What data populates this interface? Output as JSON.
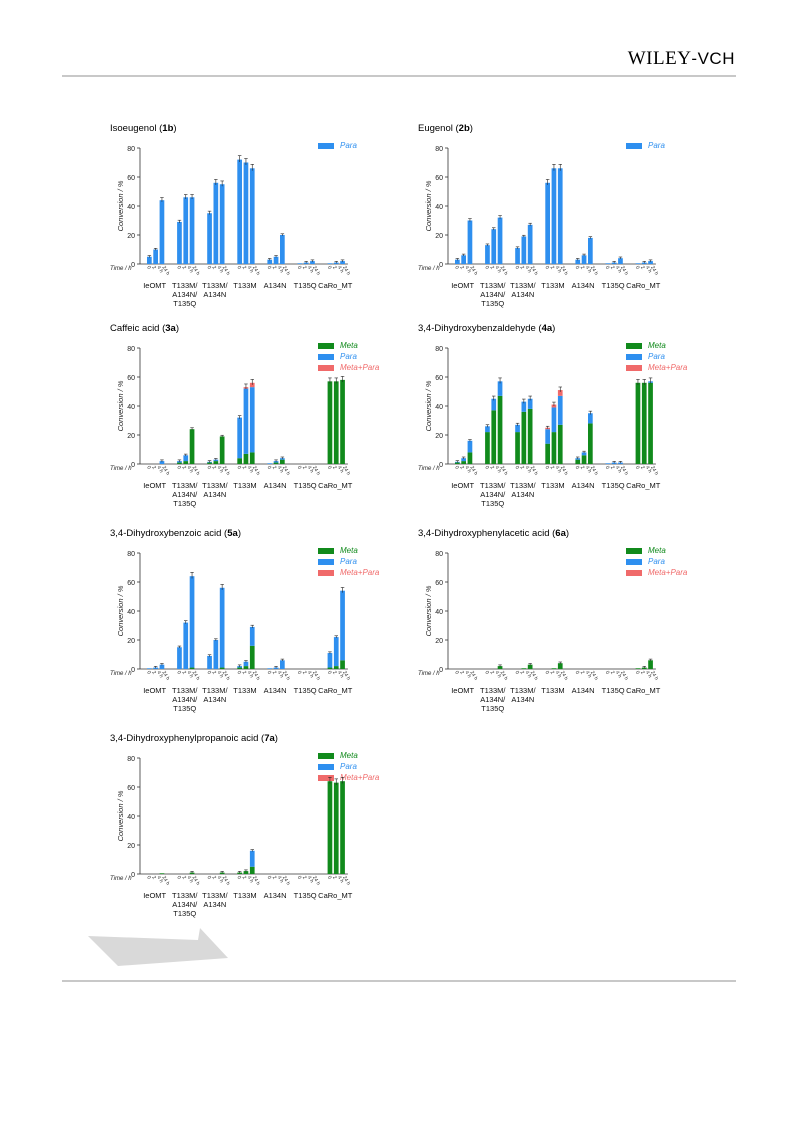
{
  "header": {
    "brand_main": "WILEY",
    "brand_sep": "-",
    "brand_sub": "VCH"
  },
  "colors": {
    "meta": "#118a1c",
    "para": "#2e8fef",
    "metapara": "#f06a6a",
    "axis": "#333333",
    "rule": "#c8c8c8"
  },
  "legend_labels": {
    "meta": "Meta",
    "para": "Para",
    "metapara": "Meta+Para"
  },
  "common": {
    "ylabel": "Conversion / %",
    "time_label": "Time / h",
    "time_ticks": [
      "0",
      "2",
      "4 h",
      "24 h"
    ],
    "yticks": [
      "0",
      "20",
      "40",
      "60",
      "80"
    ],
    "ylim": [
      0,
      80
    ]
  },
  "groups": [
    [
      "IeOMT"
    ],
    [
      "T133M/",
      "A134N/",
      "T135Q"
    ],
    [
      "T133M/",
      "A134N"
    ],
    [
      "T133M"
    ],
    [
      "A134N"
    ],
    [
      "T135Q"
    ],
    [
      "CaRo_MT"
    ]
  ],
  "chart_data": [
    {
      "type": "bar",
      "stacked": true,
      "title": "Isoeugenol",
      "compound": "1b",
      "series_keys": [
        "para"
      ],
      "values": {
        "meta": [],
        "para": [
          [
            5,
            10,
            44
          ],
          [
            29,
            46,
            46
          ],
          [
            35,
            56,
            55
          ],
          [
            72,
            70,
            66
          ],
          [
            3,
            5,
            20
          ],
          [
            0.5,
            1,
            2
          ],
          [
            0.5,
            1,
            2
          ]
        ],
        "metapara": []
      }
    },
    {
      "type": "bar",
      "stacked": true,
      "title": "Eugenol",
      "compound": "2b",
      "series_keys": [
        "para"
      ],
      "values": {
        "meta": [],
        "para": [
          [
            3,
            6,
            30
          ],
          [
            13,
            24,
            32
          ],
          [
            11,
            19,
            27
          ],
          [
            56,
            66,
            66
          ],
          [
            3,
            6,
            18
          ],
          [
            0.5,
            1,
            4
          ],
          [
            0.5,
            1,
            2
          ]
        ],
        "metapara": []
      }
    },
    {
      "type": "bar",
      "stacked": true,
      "title": "Caffeic acid",
      "compound": "3a",
      "series_keys": [
        "meta",
        "para",
        "metapara"
      ],
      "values": {
        "meta": [
          [
            0,
            0,
            0
          ],
          [
            1,
            2,
            24
          ],
          [
            1,
            2,
            19
          ],
          [
            4,
            7,
            8
          ],
          [
            0,
            1,
            3
          ],
          [
            0,
            0,
            0
          ],
          [
            57,
            57,
            58
          ]
        ],
        "para": [
          [
            0,
            0,
            2
          ],
          [
            1,
            4,
            0
          ],
          [
            0.5,
            1,
            0
          ],
          [
            28,
            45,
            45
          ],
          [
            0.5,
            1,
            1
          ],
          [
            0,
            0,
            0
          ],
          [
            0,
            0,
            0
          ]
        ],
        "metapara": [
          [
            0,
            0,
            0
          ],
          [
            0,
            0,
            0
          ],
          [
            0,
            0,
            0
          ],
          [
            0,
            1,
            3
          ],
          [
            0,
            0,
            0
          ],
          [
            0,
            0,
            0
          ],
          [
            0,
            0,
            0
          ]
        ]
      }
    },
    {
      "type": "bar",
      "stacked": true,
      "title": "3,4-Dihydroxybenzaldehyde",
      "compound": "4a",
      "series_keys": [
        "meta",
        "para",
        "metapara"
      ],
      "values": {
        "meta": [
          [
            1,
            2,
            8
          ],
          [
            22,
            37,
            47
          ],
          [
            22,
            36,
            38
          ],
          [
            14,
            22,
            27
          ],
          [
            3,
            6,
            28
          ],
          [
            0,
            0,
            0
          ],
          [
            56,
            56,
            56
          ]
        ],
        "para": [
          [
            0.5,
            2,
            8
          ],
          [
            4,
            8,
            10
          ],
          [
            5,
            7,
            7
          ],
          [
            10,
            17,
            20
          ],
          [
            1,
            2,
            7
          ],
          [
            0.5,
            1,
            1
          ],
          [
            0,
            0,
            1
          ]
        ],
        "metapara": [
          [
            0,
            0,
            0
          ],
          [
            0,
            0,
            0
          ],
          [
            0,
            0,
            0
          ],
          [
            1,
            2,
            4
          ],
          [
            0,
            0,
            0
          ],
          [
            0,
            0,
            0
          ],
          [
            0,
            0,
            0
          ]
        ]
      }
    },
    {
      "type": "bar",
      "stacked": true,
      "title": "3,4-Dihydroxybenzoic acid",
      "compound": "5a",
      "series_keys": [
        "meta",
        "para",
        "metapara"
      ],
      "values": {
        "meta": [
          [
            0,
            0,
            0
          ],
          [
            0,
            0,
            1
          ],
          [
            0,
            0,
            1
          ],
          [
            1,
            2,
            16
          ],
          [
            0,
            0,
            0
          ],
          [
            0,
            0,
            0
          ],
          [
            1,
            2,
            6
          ]
        ],
        "para": [
          [
            0.5,
            1,
            3
          ],
          [
            15,
            32,
            63
          ],
          [
            9,
            20,
            55
          ],
          [
            1,
            3,
            13
          ],
          [
            0.5,
            1,
            6
          ],
          [
            0,
            0,
            0
          ],
          [
            10,
            20,
            48
          ]
        ],
        "metapara": [
          [
            0,
            0,
            0
          ],
          [
            0,
            0,
            0
          ],
          [
            0,
            0,
            0
          ],
          [
            0,
            0,
            0
          ],
          [
            0,
            0,
            0
          ],
          [
            0,
            0,
            0
          ],
          [
            0,
            0,
            0
          ]
        ]
      }
    },
    {
      "type": "bar",
      "stacked": true,
      "title": "3,4-Dihydroxyphenylacetic acid",
      "compound": "6a",
      "series_keys": [
        "meta",
        "para",
        "metapara"
      ],
      "values": {
        "meta": [
          [
            0,
            0,
            0
          ],
          [
            0,
            0,
            2
          ],
          [
            0,
            0.5,
            3
          ],
          [
            0,
            0.5,
            4
          ],
          [
            0,
            0,
            0
          ],
          [
            0,
            0,
            0
          ],
          [
            0.5,
            1,
            6
          ]
        ],
        "para": [
          [
            0,
            0,
            0
          ],
          [
            0,
            0,
            0
          ],
          [
            0,
            0,
            0
          ],
          [
            0,
            0,
            0
          ],
          [
            0,
            0,
            0
          ],
          [
            0,
            0,
            0
          ],
          [
            0,
            0,
            0
          ]
        ],
        "metapara": [
          [
            0,
            0,
            0
          ],
          [
            0,
            0,
            0
          ],
          [
            0,
            0,
            0
          ],
          [
            0,
            0,
            0
          ],
          [
            0,
            0,
            0
          ],
          [
            0,
            0,
            0
          ],
          [
            0,
            0,
            0
          ]
        ]
      }
    },
    {
      "type": "bar",
      "stacked": true,
      "title": "3,4-Dihydroxyphenylpropanoic acid",
      "compound": "7a",
      "series_keys": [
        "meta",
        "para",
        "metapara"
      ],
      "values": {
        "meta": [
          [
            0,
            0,
            0.5
          ],
          [
            0,
            0,
            1
          ],
          [
            0,
            0,
            1
          ],
          [
            1,
            2,
            5
          ],
          [
            0,
            0,
            0
          ],
          [
            0,
            0,
            0
          ],
          [
            64,
            63,
            64
          ]
        ],
        "para": [
          [
            0,
            0,
            0
          ],
          [
            0,
            0,
            0
          ],
          [
            0,
            0,
            0
          ],
          [
            0,
            0,
            11
          ],
          [
            0,
            0,
            0
          ],
          [
            0,
            0,
            0
          ],
          [
            0,
            0,
            0
          ]
        ],
        "metapara": [
          [
            0,
            0,
            0
          ],
          [
            0,
            0,
            0
          ],
          [
            0,
            0,
            0
          ],
          [
            0,
            0,
            0
          ],
          [
            0,
            0,
            0
          ],
          [
            0,
            0,
            0
          ],
          [
            0,
            0,
            0
          ]
        ]
      }
    }
  ]
}
